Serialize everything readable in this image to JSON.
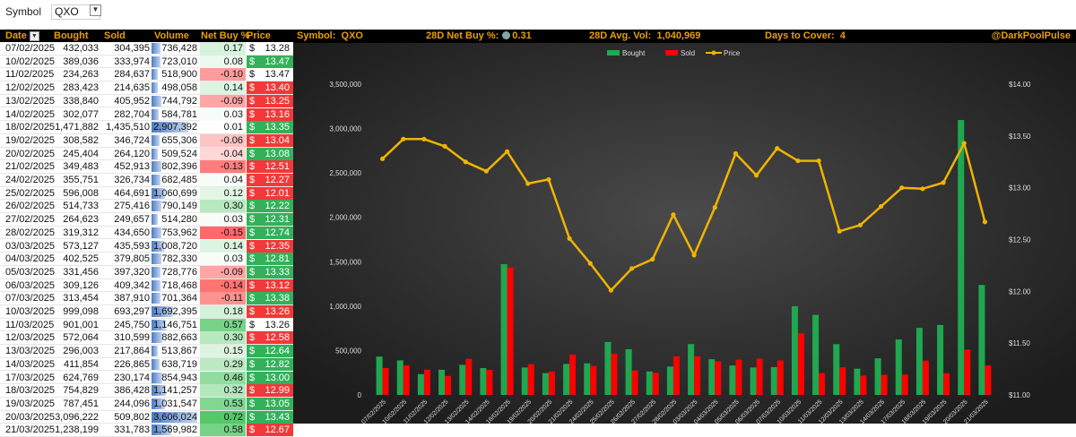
{
  "filter": {
    "label": "Symbol",
    "value": "QXO"
  },
  "table": {
    "headers": {
      "date": "Date",
      "bought": "Bought",
      "sold": "Sold",
      "volume": "Volume",
      "netbuy": "Net Buy %",
      "price": "Price"
    },
    "currency": "$",
    "rows": [
      {
        "date": "07/02/2025",
        "bought": "432,033",
        "sold": "304,395",
        "volume": "736,428",
        "vol_n": 736428,
        "net": "0.17",
        "net_n": 0.17,
        "price": "13.28",
        "dir": "none"
      },
      {
        "date": "10/02/2025",
        "bought": "389,036",
        "sold": "333,974",
        "volume": "723,010",
        "vol_n": 723010,
        "net": "0.08",
        "net_n": 0.08,
        "price": "13.47",
        "dir": "up"
      },
      {
        "date": "11/02/2025",
        "bought": "234,263",
        "sold": "284,637",
        "volume": "518,900",
        "vol_n": 518900,
        "net": "-0.10",
        "net_n": -0.1,
        "price": "13.47",
        "dir": "none"
      },
      {
        "date": "12/02/2025",
        "bought": "283,423",
        "sold": "214,635",
        "volume": "498,058",
        "vol_n": 498058,
        "net": "0.14",
        "net_n": 0.14,
        "price": "13.40",
        "dir": "down"
      },
      {
        "date": "13/02/2025",
        "bought": "338,840",
        "sold": "405,952",
        "volume": "744,792",
        "vol_n": 744792,
        "net": "-0.09",
        "net_n": -0.09,
        "price": "13.25",
        "dir": "down"
      },
      {
        "date": "14/02/2025",
        "bought": "302,077",
        "sold": "282,704",
        "volume": "584,781",
        "vol_n": 584781,
        "net": "0.03",
        "net_n": 0.03,
        "price": "13.16",
        "dir": "down"
      },
      {
        "date": "18/02/2025",
        "bought": "1,471,882",
        "sold": "1,435,510",
        "volume": "2,907,392",
        "vol_n": 2907392,
        "net": "0.01",
        "net_n": 0.01,
        "price": "13.35",
        "dir": "up"
      },
      {
        "date": "19/02/2025",
        "bought": "308,582",
        "sold": "346,724",
        "volume": "655,306",
        "vol_n": 655306,
        "net": "-0.06",
        "net_n": -0.06,
        "price": "13.04",
        "dir": "down"
      },
      {
        "date": "20/02/2025",
        "bought": "245,404",
        "sold": "264,120",
        "volume": "509,524",
        "vol_n": 509524,
        "net": "-0.04",
        "net_n": -0.04,
        "price": "13.08",
        "dir": "up"
      },
      {
        "date": "21/02/2025",
        "bought": "349,483",
        "sold": "452,913",
        "volume": "802,396",
        "vol_n": 802396,
        "net": "-0.13",
        "net_n": -0.13,
        "price": "12.51",
        "dir": "down"
      },
      {
        "date": "24/02/2025",
        "bought": "355,751",
        "sold": "326,734",
        "volume": "682,485",
        "vol_n": 682485,
        "net": "0.04",
        "net_n": 0.04,
        "price": "12.27",
        "dir": "down"
      },
      {
        "date": "25/02/2025",
        "bought": "596,008",
        "sold": "464,691",
        "volume": "1,060,699",
        "vol_n": 1060699,
        "net": "0.12",
        "net_n": 0.12,
        "price": "12.01",
        "dir": "down"
      },
      {
        "date": "26/02/2025",
        "bought": "514,733",
        "sold": "275,416",
        "volume": "790,149",
        "vol_n": 790149,
        "net": "0.30",
        "net_n": 0.3,
        "price": "12.22",
        "dir": "up"
      },
      {
        "date": "27/02/2025",
        "bought": "264,623",
        "sold": "249,657",
        "volume": "514,280",
        "vol_n": 514280,
        "net": "0.03",
        "net_n": 0.03,
        "price": "12.31",
        "dir": "up"
      },
      {
        "date": "28/02/2025",
        "bought": "319,312",
        "sold": "434,650",
        "volume": "753,962",
        "vol_n": 753962,
        "net": "-0.15",
        "net_n": -0.15,
        "price": "12.74",
        "dir": "up"
      },
      {
        "date": "03/03/2025",
        "bought": "573,127",
        "sold": "435,593",
        "volume": "1,008,720",
        "vol_n": 1008720,
        "net": "0.14",
        "net_n": 0.14,
        "price": "12.35",
        "dir": "down"
      },
      {
        "date": "04/03/2025",
        "bought": "402,525",
        "sold": "379,805",
        "volume": "782,330",
        "vol_n": 782330,
        "net": "0.03",
        "net_n": 0.03,
        "price": "12.81",
        "dir": "up"
      },
      {
        "date": "05/03/2025",
        "bought": "331,456",
        "sold": "397,320",
        "volume": "728,776",
        "vol_n": 728776,
        "net": "-0.09",
        "net_n": -0.09,
        "price": "13.33",
        "dir": "up"
      },
      {
        "date": "06/03/2025",
        "bought": "309,126",
        "sold": "409,342",
        "volume": "718,468",
        "vol_n": 718468,
        "net": "-0.14",
        "net_n": -0.14,
        "price": "13.12",
        "dir": "down"
      },
      {
        "date": "07/03/2025",
        "bought": "313,454",
        "sold": "387,910",
        "volume": "701,364",
        "vol_n": 701364,
        "net": "-0.11",
        "net_n": -0.11,
        "price": "13.38",
        "dir": "up"
      },
      {
        "date": "10/03/2025",
        "bought": "999,098",
        "sold": "693,297",
        "volume": "1,692,395",
        "vol_n": 1692395,
        "net": "0.18",
        "net_n": 0.18,
        "price": "13.26",
        "dir": "down"
      },
      {
        "date": "11/03/2025",
        "bought": "901,001",
        "sold": "245,750",
        "volume": "1,146,751",
        "vol_n": 1146751,
        "net": "0.57",
        "net_n": 0.57,
        "price": "13.26",
        "dir": "none"
      },
      {
        "date": "12/03/2025",
        "bought": "572,064",
        "sold": "310,599",
        "volume": "882,663",
        "vol_n": 882663,
        "net": "0.30",
        "net_n": 0.3,
        "price": "12.58",
        "dir": "down"
      },
      {
        "date": "13/03/2025",
        "bought": "296,003",
        "sold": "217,864",
        "volume": "513,867",
        "vol_n": 513867,
        "net": "0.15",
        "net_n": 0.15,
        "price": "12.64",
        "dir": "up"
      },
      {
        "date": "14/03/2025",
        "bought": "411,854",
        "sold": "226,865",
        "volume": "638,719",
        "vol_n": 638719,
        "net": "0.29",
        "net_n": 0.29,
        "price": "12.82",
        "dir": "up"
      },
      {
        "date": "17/03/2025",
        "bought": "624,769",
        "sold": "230,174",
        "volume": "854,943",
        "vol_n": 854943,
        "net": "0.46",
        "net_n": 0.46,
        "price": "13.00",
        "dir": "up"
      },
      {
        "date": "18/03/2025",
        "bought": "754,829",
        "sold": "386,428",
        "volume": "1,141,257",
        "vol_n": 1141257,
        "net": "0.32",
        "net_n": 0.32,
        "price": "12.99",
        "dir": "down"
      },
      {
        "date": "19/03/2025",
        "bought": "787,451",
        "sold": "244,096",
        "volume": "1,031,547",
        "vol_n": 1031547,
        "net": "0.53",
        "net_n": 0.53,
        "price": "13.05",
        "dir": "up"
      },
      {
        "date": "20/03/2025",
        "bought": "3,096,222",
        "sold": "509,802",
        "volume": "3,606,024",
        "vol_n": 3606024,
        "net": "0.72",
        "net_n": 0.72,
        "price": "13.43",
        "dir": "up"
      },
      {
        "date": "21/03/2025",
        "bought": "1,238,199",
        "sold": "331,783",
        "volume": "1,569,982",
        "vol_n": 1569982,
        "net": "0.58",
        "net_n": 0.58,
        "price": "12.67",
        "dir": "down"
      }
    ]
  },
  "header": {
    "symbol_label": "Symbol:",
    "symbol_value": "QXO",
    "netbuy_label": "28D Net Buy %:",
    "netbuy_value": "0.31",
    "avgvol_label": "28D Avg. Vol:",
    "avgvol_value": "1,040,969",
    "dtc_label": "Days to Cover:",
    "dtc_value": "4",
    "handle": "@DarkPoolPulse"
  },
  "colors": {
    "bought": "#1fa84f",
    "sold": "#ff0000",
    "price": "#f0b400",
    "header_text": "#e8a000",
    "up": "#33b15a",
    "down": "#f23838"
  },
  "chart_data": {
    "type": "bar",
    "categories": [
      "07/02/2025",
      "10/02/2025",
      "11/02/2025",
      "12/02/2025",
      "13/02/2025",
      "14/02/2025",
      "18/02/2025",
      "19/02/2025",
      "20/02/2025",
      "21/02/2025",
      "24/02/2025",
      "25/02/2025",
      "26/02/2025",
      "27/02/2025",
      "28/02/2025",
      "03/03/2025",
      "04/03/2025",
      "05/03/2025",
      "06/03/2025",
      "07/03/2025",
      "10/03/2025",
      "11/03/2025",
      "12/03/2025",
      "13/03/2025",
      "14/03/2025",
      "17/03/2025",
      "18/03/2025",
      "19/03/2025",
      "20/03/2025",
      "21/03/2025"
    ],
    "series": [
      {
        "name": "Bought",
        "type": "bar",
        "axis": "left",
        "values": [
          432033,
          389036,
          234263,
          283423,
          338840,
          302077,
          1471882,
          308582,
          245404,
          349483,
          355751,
          596008,
          514733,
          264623,
          319312,
          573127,
          402525,
          331456,
          309126,
          313454,
          999098,
          901001,
          572064,
          296003,
          411854,
          624769,
          754829,
          787451,
          3096222,
          1238199
        ]
      },
      {
        "name": "Sold",
        "type": "bar",
        "axis": "left",
        "values": [
          304395,
          333974,
          284637,
          214635,
          405952,
          282704,
          1435510,
          346724,
          264120,
          452913,
          326734,
          464691,
          275416,
          249657,
          434650,
          435593,
          379805,
          397320,
          409342,
          387910,
          693297,
          245750,
          310599,
          217864,
          226865,
          230174,
          386428,
          244096,
          509802,
          331783
        ]
      },
      {
        "name": "Price",
        "type": "line",
        "axis": "right",
        "values": [
          13.28,
          13.47,
          13.47,
          13.4,
          13.25,
          13.16,
          13.35,
          13.04,
          13.08,
          12.51,
          12.27,
          12.01,
          12.22,
          12.31,
          12.74,
          12.35,
          12.81,
          13.33,
          13.12,
          13.38,
          13.26,
          13.26,
          12.58,
          12.64,
          12.82,
          13.0,
          12.99,
          13.05,
          13.43,
          12.67
        ]
      }
    ],
    "ylim": [
      0,
      3500000
    ],
    "y_ticks": [
      "0",
      "500,000",
      "1,000,000",
      "1,500,000",
      "2,000,000",
      "2,500,000",
      "3,000,000",
      "3,500,000"
    ],
    "y2lim": [
      11.0,
      14.0
    ],
    "y2_ticks": [
      "$11.00",
      "$11.50",
      "$12.00",
      "$12.50",
      "$13.00",
      "$13.50",
      "$14.00"
    ],
    "legend": "top-center",
    "grid": false
  }
}
